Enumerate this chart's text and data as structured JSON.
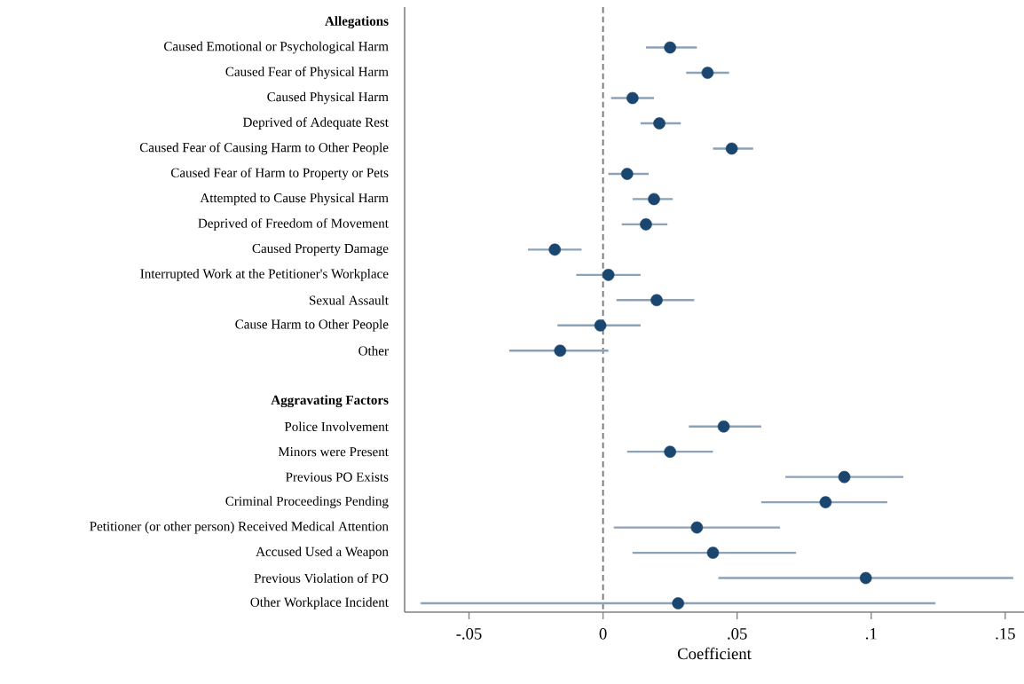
{
  "chart_data": {
    "type": "scatter",
    "orientation": "horizontal",
    "marker": "circle",
    "xlabel": "Coefficient",
    "categories": [
      "Allegations",
      "Caused Emotional or Psychological Harm",
      "Caused Fear of Physical Harm",
      "Caused Physical Harm",
      "Deprived of Adequate Rest",
      "Caused Fear of Causing Harm to Other People",
      "Caused Fear of Harm to Property or Pets",
      "Attempted to Cause Physical Harm",
      "Deprived of Freedom of Movement",
      "Caused Property Damage",
      "Interrupted Work at the Petitioner's Workplace",
      "Sexual Assault",
      "Cause Harm to Other People",
      "Other",
      null,
      "Aggravating Factors",
      "Police Involvement",
      "Minors were Present",
      "Previous PO Exists",
      "Criminal Proceedings Pending",
      "Petitioner (or other person) Received Medical Attention",
      "Accused Used a Weapon",
      "Previous Violation of PO",
      "Other Workplace Incident"
    ],
    "series": [
      {
        "color": "#1a4670",
        "values": [
          null,
          0.025,
          0.039,
          0.011,
          0.021,
          0.048,
          0.009,
          0.019,
          0.016,
          -0.018,
          0.002,
          0.02,
          -0.001,
          -0.016,
          null,
          null,
          0.045,
          0.025,
          0.09,
          0.083,
          0.035,
          0.041,
          0.098,
          0.028
        ],
        "errors": [
          null,
          [
            0.016,
            0.035
          ],
          [
            0.031,
            0.047
          ],
          [
            0.003,
            0.019
          ],
          [
            0.014,
            0.029
          ],
          [
            0.041,
            0.056
          ],
          [
            0.002,
            0.017
          ],
          [
            0.011,
            0.026
          ],
          [
            0.007,
            0.024
          ],
          [
            -0.028,
            -0.008
          ],
          [
            -0.01,
            0.014
          ],
          [
            0.005,
            0.034
          ],
          [
            -0.017,
            0.014
          ],
          [
            -0.035,
            0.002
          ],
          null,
          null,
          [
            0.032,
            0.059
          ],
          [
            0.009,
            0.041
          ],
          [
            0.068,
            0.112
          ],
          [
            0.059,
            0.106
          ],
          [
            0.004,
            0.066
          ],
          [
            0.011,
            0.072
          ],
          [
            0.043,
            0.153
          ],
          [
            -0.068,
            0.124
          ]
        ]
      }
    ],
    "xlim": [
      -0.074,
      0.157
    ],
    "xticks": [
      {
        "value": -0.05,
        "label": "-.05"
      },
      0,
      {
        "value": 0.05,
        "label": ".05"
      },
      {
        "value": 0.1,
        "label": ".1"
      },
      {
        "value": 0.15,
        "label": ".15"
      }
    ],
    "ref_lines": [
      {
        "axis": "x",
        "value": 0,
        "color": "#6e6e6e",
        "line_style": "dashed"
      }
    ]
  }
}
